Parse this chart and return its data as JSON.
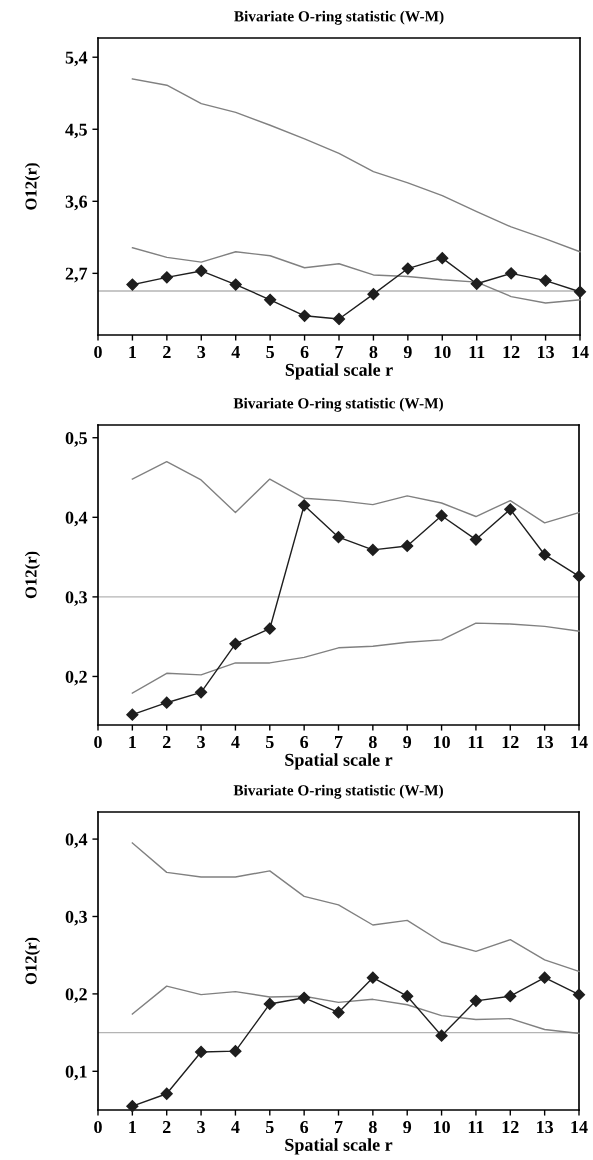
{
  "chart_data": [
    {
      "type": "line",
      "title": "Bivariate O-ring statistic (W-M)",
      "xlabel": "Spatial scale r",
      "ylabel": "O12(r)",
      "x": [
        1,
        2,
        3,
        4,
        5,
        6,
        7,
        8,
        9,
        10,
        11,
        12,
        13,
        14
      ],
      "xlim": [
        0,
        14
      ],
      "xticks": [
        0,
        1,
        2,
        3,
        4,
        5,
        6,
        7,
        8,
        9,
        10,
        11,
        12,
        13,
        14
      ],
      "ylim": [
        1.93,
        5.64
      ],
      "yticks": [
        {
          "value": 2.7,
          "label": "2,7"
        },
        {
          "value": 3.6,
          "label": "3,6"
        },
        {
          "value": 4.5,
          "label": "4,5"
        },
        {
          "value": 5.4,
          "label": "5,4"
        }
      ],
      "grid": false,
      "ref_lines": [
        {
          "axis": "y",
          "value": 2.48,
          "color": "#b4b4b4"
        }
      ],
      "series": [
        {
          "color": "#808080",
          "marker": "none",
          "values": [
            5.13,
            5.05,
            4.82,
            4.71,
            4.55,
            4.38,
            4.2,
            3.97,
            3.83,
            3.67,
            3.47,
            3.28,
            3.13,
            2.97
          ]
        },
        {
          "color": "#808080",
          "marker": "none",
          "values": [
            3.02,
            2.9,
            2.84,
            2.97,
            2.92,
            2.77,
            2.82,
            2.68,
            2.66,
            2.62,
            2.59,
            2.41,
            2.33,
            2.37
          ]
        },
        {
          "color": "#1e1e1e",
          "marker": "diamond",
          "values": [
            2.56,
            2.65,
            2.73,
            2.56,
            2.37,
            2.17,
            2.13,
            2.44,
            2.76,
            2.89,
            2.57,
            2.7,
            2.61,
            2.47
          ]
        }
      ]
    },
    {
      "type": "line",
      "title": "Bivariate O-ring statistic (W-M)",
      "xlabel": "Spatial scale r",
      "ylabel": "O12(r)",
      "x": [
        1,
        2,
        3,
        4,
        5,
        6,
        7,
        8,
        9,
        10,
        11,
        12,
        13,
        14
      ],
      "xlim": [
        0,
        14
      ],
      "xticks": [
        0,
        1,
        2,
        3,
        4,
        5,
        6,
        7,
        8,
        9,
        10,
        11,
        12,
        13,
        14
      ],
      "ylim": [
        0.139,
        0.516
      ],
      "yticks": [
        {
          "value": 0.2,
          "label": "0,2"
        },
        {
          "value": 0.3,
          "label": "0,3"
        },
        {
          "value": 0.4,
          "label": "0,4"
        },
        {
          "value": 0.5,
          "label": "0,5"
        }
      ],
      "grid": false,
      "ref_lines": [
        {
          "axis": "y",
          "value": 0.3,
          "color": "#b4b4b4"
        }
      ],
      "series": [
        {
          "color": "#808080",
          "marker": "none",
          "values": [
            0.448,
            0.47,
            0.447,
            0.406,
            0.448,
            0.424,
            0.421,
            0.416,
            0.427,
            0.418,
            0.401,
            0.421,
            0.393,
            0.406
          ]
        },
        {
          "color": "#808080",
          "marker": "none",
          "values": [
            0.179,
            0.204,
            0.202,
            0.217,
            0.217,
            0.224,
            0.236,
            0.238,
            0.243,
            0.246,
            0.267,
            0.266,
            0.263,
            0.257
          ]
        },
        {
          "color": "#1e1e1e",
          "marker": "diamond",
          "values": [
            0.152,
            0.167,
            0.18,
            0.241,
            0.26,
            0.415,
            0.375,
            0.359,
            0.364,
            0.402,
            0.372,
            0.41,
            0.353,
            0.326
          ]
        }
      ]
    },
    {
      "type": "line",
      "title": "Bivariate O-ring statistic (W-M)",
      "xlabel": "Spatial scale r",
      "ylabel": "O12(r)",
      "x": [
        1,
        2,
        3,
        4,
        5,
        6,
        7,
        8,
        9,
        10,
        11,
        12,
        13,
        14
      ],
      "xlim": [
        0,
        14
      ],
      "xticks": [
        0,
        1,
        2,
        3,
        4,
        5,
        6,
        7,
        8,
        9,
        10,
        11,
        12,
        13,
        14
      ],
      "ylim": [
        0.05,
        0.435
      ],
      "yticks": [
        {
          "value": 0.1,
          "label": "0,1"
        },
        {
          "value": 0.2,
          "label": "0,2"
        },
        {
          "value": 0.3,
          "label": "0,3"
        },
        {
          "value": 0.4,
          "label": "0,4"
        }
      ],
      "grid": false,
      "ref_lines": [
        {
          "axis": "y",
          "value": 0.15,
          "color": "#b4b4b4"
        }
      ],
      "series": [
        {
          "color": "#808080",
          "marker": "none",
          "values": [
            0.395,
            0.357,
            0.351,
            0.351,
            0.359,
            0.326,
            0.315,
            0.289,
            0.295,
            0.267,
            0.255,
            0.27,
            0.244,
            0.229
          ]
        },
        {
          "color": "#808080",
          "marker": "none",
          "values": [
            0.174,
            0.21,
            0.199,
            0.203,
            0.196,
            0.197,
            0.189,
            0.193,
            0.186,
            0.172,
            0.167,
            0.168,
            0.154,
            0.149
          ]
        },
        {
          "color": "#1e1e1e",
          "marker": "diamond",
          "values": [
            0.055,
            0.071,
            0.125,
            0.126,
            0.187,
            0.195,
            0.176,
            0.221,
            0.197,
            0.146,
            0.191,
            0.197,
            0.221,
            0.199
          ]
        }
      ]
    }
  ]
}
